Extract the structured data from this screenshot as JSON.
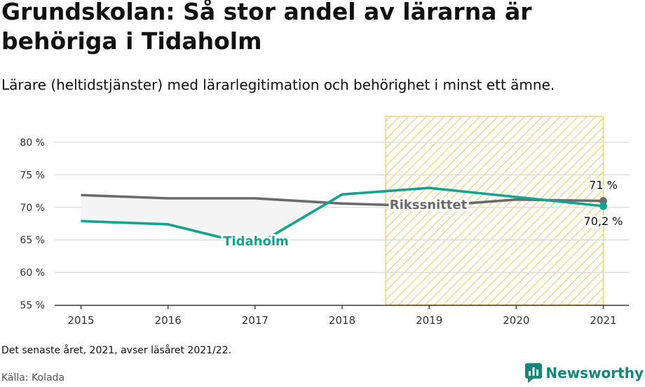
{
  "title": "Grundskolan: Så stor andel av lärarna är behöriga i Tidaholm",
  "subtitle": "Lärare (heltidstjänster) med lärarlegitimation och behörighet i minst ett ämne.",
  "note": "Det senaste året, 2021, avser läsåret 2021/22.",
  "source": "Källa: Kolada",
  "brand": "Newsworthy",
  "colors": {
    "tidaholm": "#12a391",
    "riksnittet": "#6b6b6b",
    "highlight": "#f4cc6a",
    "brand": "#16857a"
  },
  "chart_data": {
    "type": "line",
    "x": [
      2015,
      2016,
      2017,
      2018,
      2019,
      2020,
      2021
    ],
    "xlim": [
      2014.7,
      2021.3
    ],
    "ylim": [
      55,
      84
    ],
    "yticks": [
      55,
      60,
      65,
      70,
      75,
      80
    ],
    "ytick_labels": [
      "55 %",
      "60 %",
      "65 %",
      "70 %",
      "75 %",
      "80 %"
    ],
    "grid": true,
    "highlight_range": [
      2018.5,
      2021
    ],
    "series": [
      {
        "name": "Rikssnittet",
        "values": [
          71.9,
          71.4,
          71.4,
          70.6,
          70.2,
          71.2,
          71.0
        ],
        "end_label": "71 %"
      },
      {
        "name": "Tidaholm",
        "values": [
          67.9,
          67.4,
          64.1,
          72.0,
          73.0,
          71.6,
          70.2
        ],
        "end_label": "70,2 %"
      }
    ]
  }
}
